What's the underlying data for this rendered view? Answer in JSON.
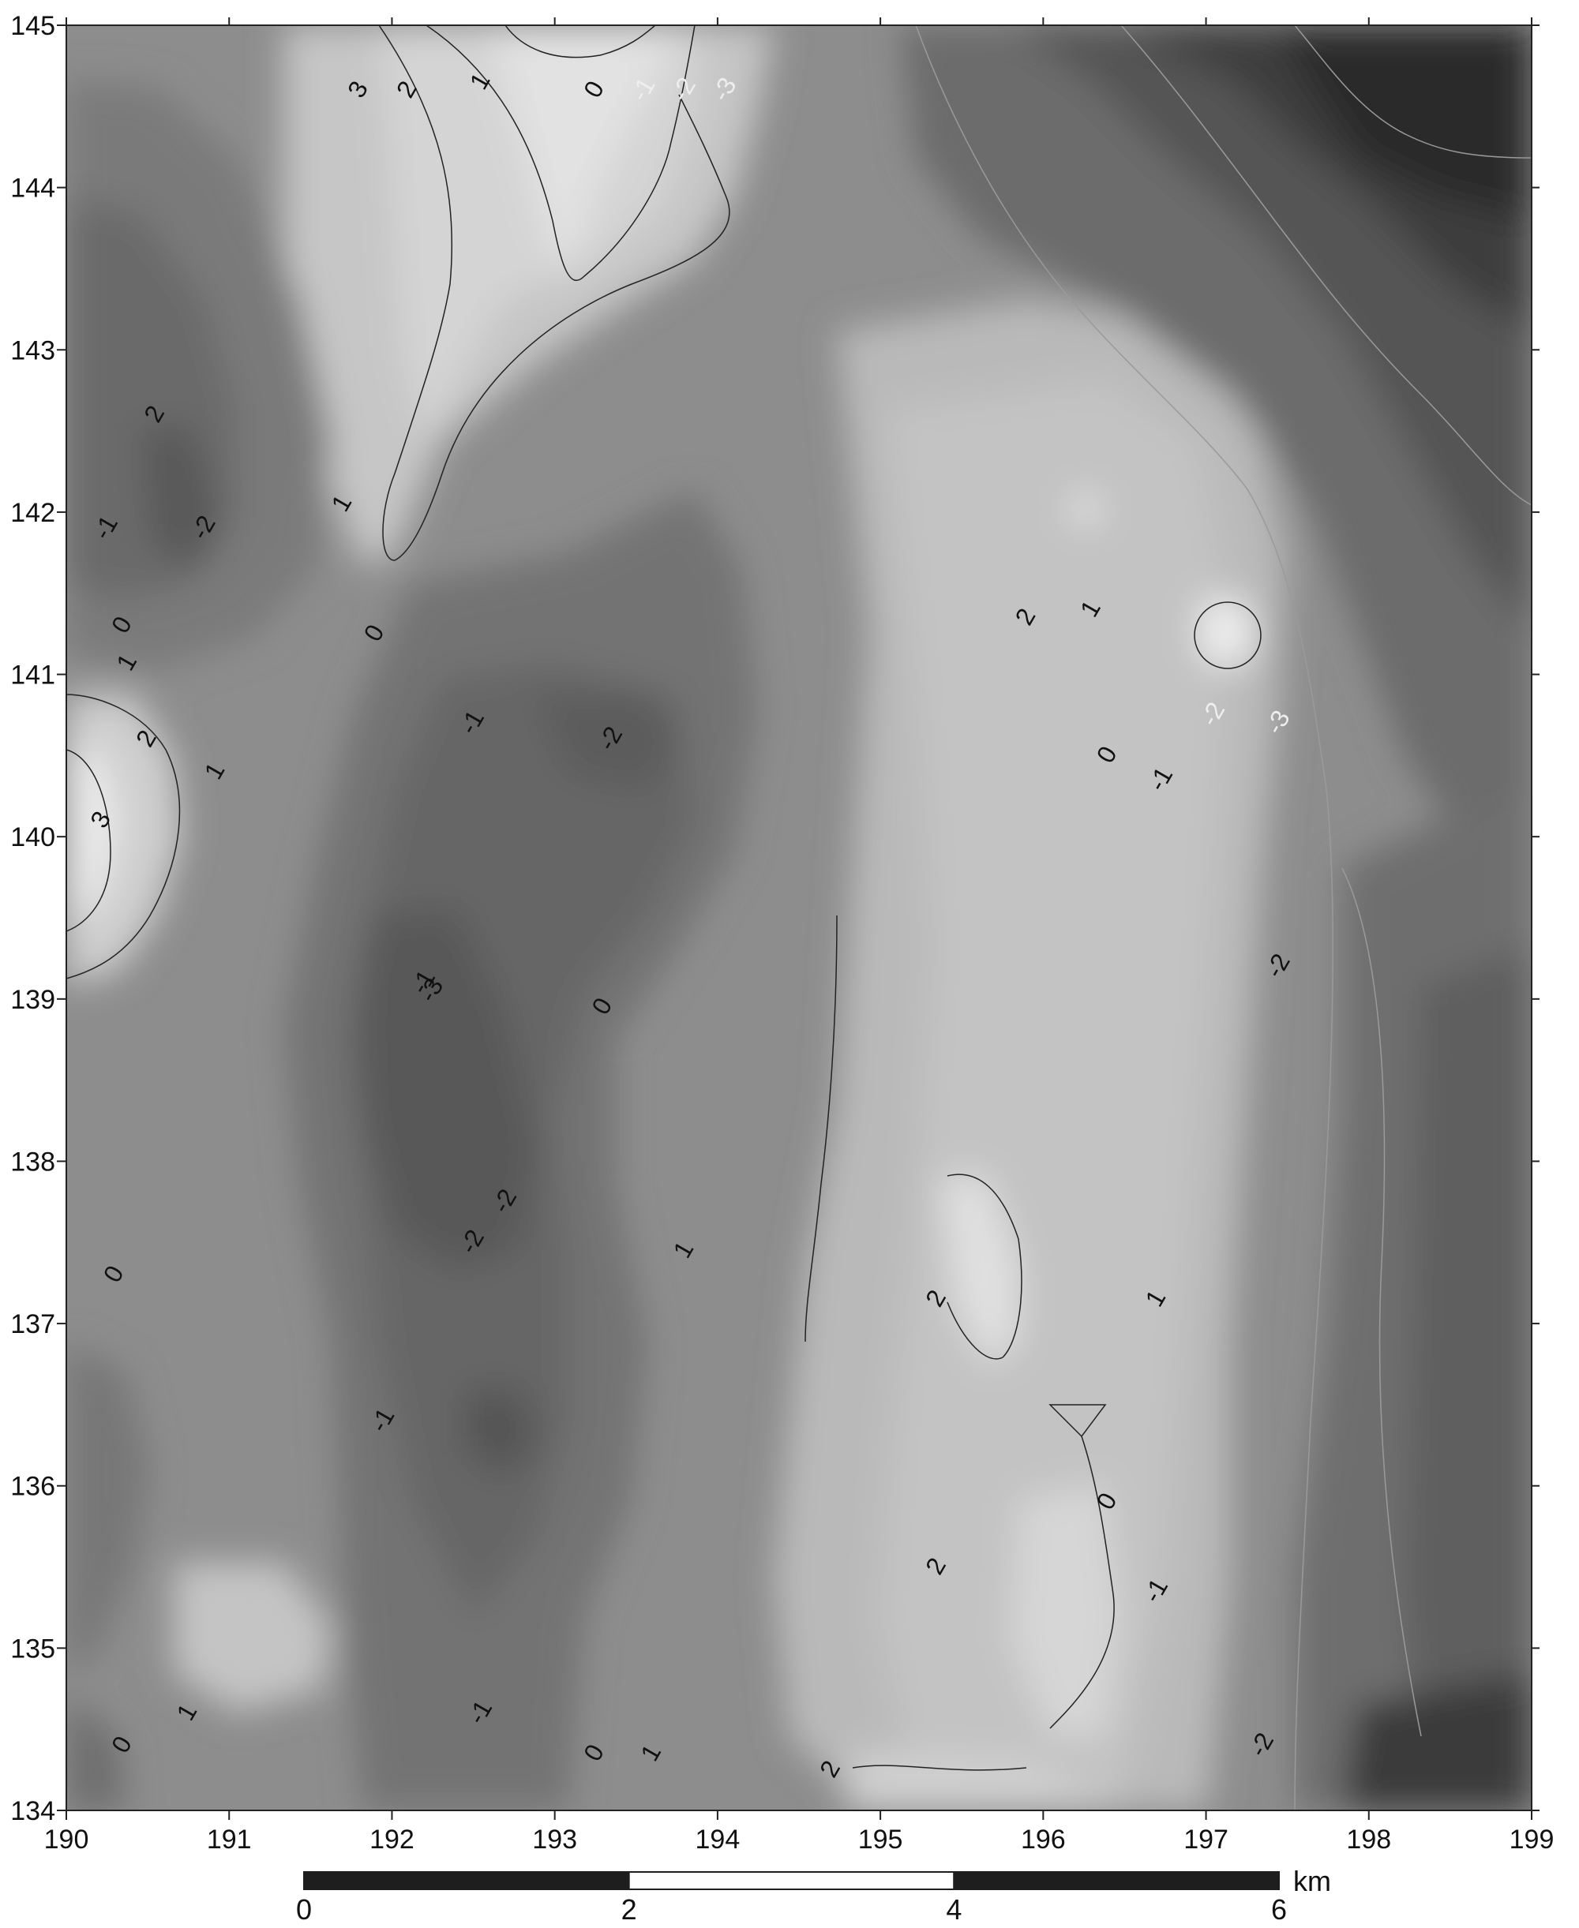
{
  "map": {
    "x_ticks": [
      "190",
      "191",
      "192",
      "193",
      "194",
      "195",
      "196",
      "197",
      "198",
      "199"
    ],
    "y_ticks": [
      "145",
      "144",
      "143",
      "142",
      "141",
      "140",
      "139",
      "138",
      "137",
      "136",
      "135",
      "134"
    ],
    "contour_labels": [
      {
        "text": "3",
        "x": 191.8,
        "y": 144.6
      },
      {
        "text": "2",
        "x": 192.1,
        "y": 144.6
      },
      {
        "text": "1",
        "x": 192.55,
        "y": 144.65
      },
      {
        "text": "0",
        "x": 193.25,
        "y": 144.6
      },
      {
        "text": "-1",
        "x": 193.55,
        "y": 144.6
      },
      {
        "text": "-2",
        "x": 193.8,
        "y": 144.6
      },
      {
        "text": "-3",
        "x": 194.05,
        "y": 144.6
      },
      {
        "text": "2",
        "x": 190.55,
        "y": 142.6
      },
      {
        "text": "1",
        "x": 191.7,
        "y": 142.05
      },
      {
        "text": "-1",
        "x": 190.25,
        "y": 141.9
      },
      {
        "text": "-2",
        "x": 190.85,
        "y": 141.9
      },
      {
        "text": "0",
        "x": 190.35,
        "y": 141.3
      },
      {
        "text": "1",
        "x": 190.38,
        "y": 141.07
      },
      {
        "text": "0",
        "x": 191.9,
        "y": 141.25
      },
      {
        "text": "-1",
        "x": 192.5,
        "y": 140.7
      },
      {
        "text": "-2",
        "x": 193.35,
        "y": 140.6
      },
      {
        "text": "2",
        "x": 190.5,
        "y": 140.6
      },
      {
        "text": "1",
        "x": 190.92,
        "y": 140.4
      },
      {
        "text": "3",
        "x": 190.22,
        "y": 140.1
      },
      {
        "text": "-3",
        "x": 192.25,
        "y": 139.05
      },
      {
        "text": "-1",
        "x": 192.2,
        "y": 139.1
      },
      {
        "text": "0",
        "x": 193.3,
        "y": 138.95
      },
      {
        "text": "2",
        "x": 195.9,
        "y": 141.35
      },
      {
        "text": "1",
        "x": 196.3,
        "y": 141.4
      },
      {
        "text": "0",
        "x": 196.4,
        "y": 140.5
      },
      {
        "text": "-1",
        "x": 196.73,
        "y": 140.35
      },
      {
        "text": "-2",
        "x": 197.05,
        "y": 140.75
      },
      {
        "text": "-3",
        "x": 197.45,
        "y": 140.7
      },
      {
        "text": "-2",
        "x": 197.45,
        "y": 139.2
      },
      {
        "text": "-2",
        "x": 192.7,
        "y": 137.75
      },
      {
        "text": "-2",
        "x": 192.5,
        "y": 137.5
      },
      {
        "text": "1",
        "x": 193.8,
        "y": 137.45
      },
      {
        "text": "0",
        "x": 190.3,
        "y": 137.3
      },
      {
        "text": "2",
        "x": 195.35,
        "y": 137.15
      },
      {
        "text": "1",
        "x": 196.7,
        "y": 137.15
      },
      {
        "text": "-1",
        "x": 191.95,
        "y": 136.4
      },
      {
        "text": "0",
        "x": 196.4,
        "y": 135.9
      },
      {
        "text": "2",
        "x": 195.35,
        "y": 135.5
      },
      {
        "text": "-1",
        "x": 196.7,
        "y": 135.35
      },
      {
        "text": "1",
        "x": 190.75,
        "y": 134.6
      },
      {
        "text": "0",
        "x": 190.35,
        "y": 134.4
      },
      {
        "text": "-1",
        "x": 192.55,
        "y": 134.6
      },
      {
        "text": "0",
        "x": 193.25,
        "y": 134.35
      },
      {
        "text": "1",
        "x": 193.6,
        "y": 134.35
      },
      {
        "text": "2",
        "x": 194.7,
        "y": 134.25
      },
      {
        "text": "-2",
        "x": 197.35,
        "y": 134.4
      }
    ]
  },
  "scale_bar": {
    "ticks": [
      "0",
      "2",
      "4",
      "6"
    ],
    "unit": "km"
  }
}
